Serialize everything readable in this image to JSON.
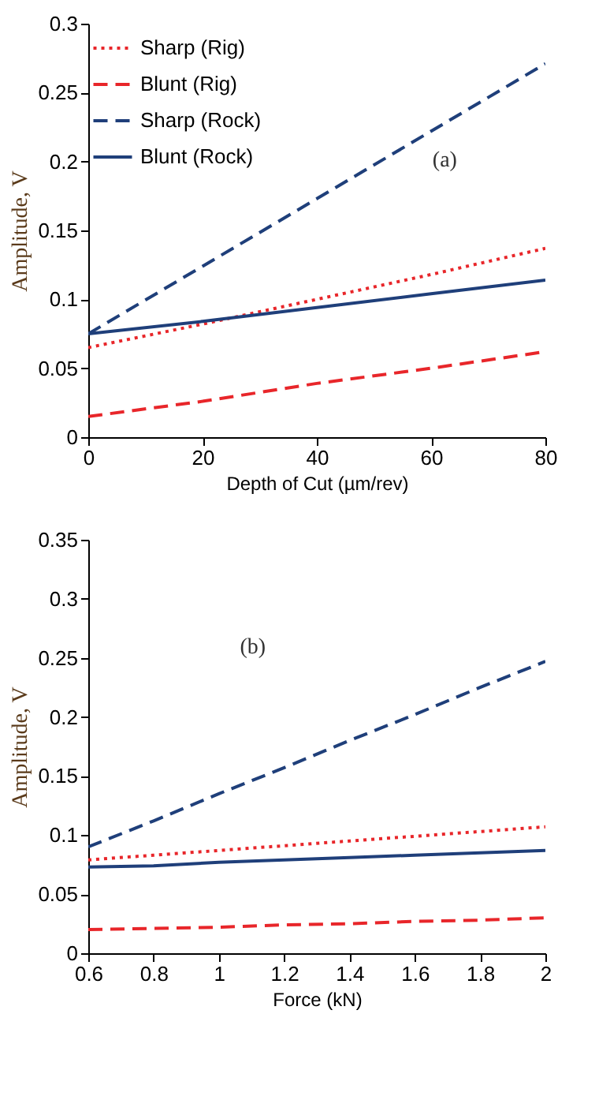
{
  "chart_data": [
    {
      "type": "line",
      "xlabel": "Depth of Cut (µm/rev)",
      "ylabel": "Amplitude, V",
      "x": [
        0,
        20,
        40,
        60,
        80
      ],
      "xlim": [
        0,
        80
      ],
      "xticks": [
        0,
        20,
        40,
        60,
        80
      ],
      "ylim": [
        0,
        0.3
      ],
      "yticks": [
        0,
        0.05,
        0.1,
        0.15,
        0.2,
        0.25,
        0.3
      ],
      "grid": false,
      "legend": "top left",
      "marker": "none",
      "annotations": [
        "(a)"
      ],
      "series": [
        {
          "name": "Sharp (Rig)",
          "color": "#e8262a",
          "line_style": "dotted",
          "values": [
            0.065,
            0.082,
            0.1,
            0.118,
            0.137
          ]
        },
        {
          "name": "Blunt (Rig)",
          "color": "#e8262a",
          "line_style": "dashed",
          "values": [
            0.015,
            0.026,
            0.039,
            0.05,
            0.062
          ]
        },
        {
          "name": "Sharp (Rock)",
          "color": "#1f3f7a",
          "line_style": "dashed",
          "values": [
            0.075,
            0.124,
            0.173,
            0.222,
            0.271
          ]
        },
        {
          "name": "Blunt (Rock)",
          "color": "#1f3f7a",
          "line_style": "solid",
          "values": [
            0.075,
            0.084,
            0.094,
            0.104,
            0.114
          ]
        }
      ]
    },
    {
      "type": "line",
      "xlabel": "Force (kN)",
      "ylabel": "Amplitude, V",
      "x": [
        0.6,
        0.8,
        1.0,
        1.2,
        1.4,
        1.6,
        1.8,
        2.0
      ],
      "xlim": [
        0.6,
        2
      ],
      "xticks": [
        0.6,
        0.8,
        1,
        1.2,
        1.4,
        1.6,
        1.8,
        2
      ],
      "ylim": [
        0,
        0.35
      ],
      "yticks": [
        0,
        0.05,
        0.1,
        0.15,
        0.2,
        0.25,
        0.3,
        0.35
      ],
      "grid": false,
      "marker": "none",
      "annotations": [
        "(b)"
      ],
      "series": [
        {
          "color": "#e8262a",
          "line_style": "dotted",
          "values": [
            0.079,
            0.083,
            0.087,
            0.091,
            0.095,
            0.099,
            0.103,
            0.107
          ]
        },
        {
          "color": "#e8262a",
          "line_style": "dashed",
          "values": [
            0.02,
            0.021,
            0.022,
            0.024,
            0.025,
            0.027,
            0.028,
            0.03
          ]
        },
        {
          "color": "#1f3f7a",
          "line_style": "dashed",
          "values": [
            0.09,
            0.112,
            0.135,
            0.157,
            0.18,
            0.202,
            0.225,
            0.247
          ]
        },
        {
          "color": "#1f3f7a",
          "line_style": "solid",
          "values": [
            0.073,
            0.074,
            0.077,
            0.079,
            0.081,
            0.083,
            0.085,
            0.087
          ]
        }
      ]
    }
  ]
}
